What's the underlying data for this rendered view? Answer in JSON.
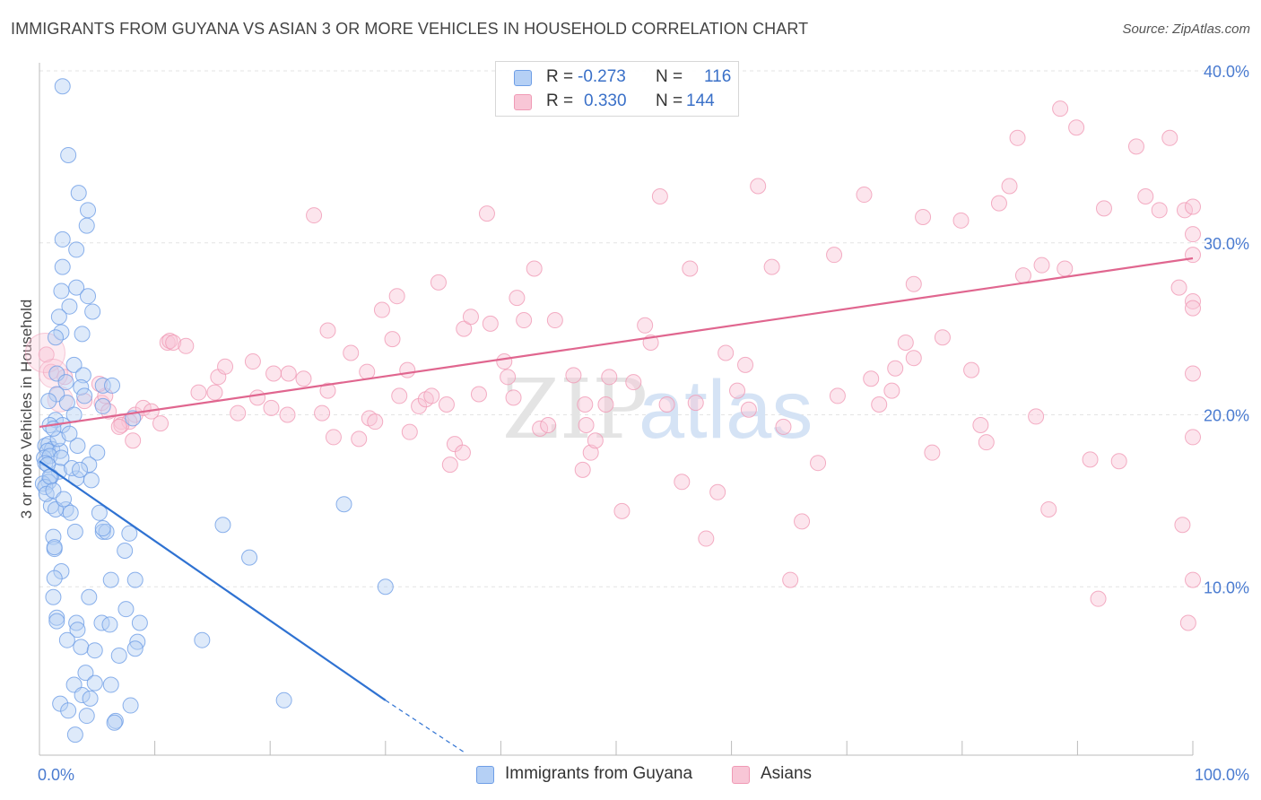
{
  "title": "IMMIGRANTS FROM GUYANA VS ASIAN 3 OR MORE VEHICLES IN HOUSEHOLD CORRELATION CHART",
  "source": "Source: ZipAtlas.com",
  "watermark": {
    "zip": "ZIP",
    "atlas": "atlas"
  },
  "stats": [
    {
      "r_label": "R =",
      "r_value": "-0.273",
      "n_label": "N =",
      "n_value": "116"
    },
    {
      "r_label": "R =",
      "r_value": "0.330",
      "n_label": "N =",
      "n_value": "144"
    }
  ],
  "chart_data": {
    "type": "scatter",
    "title": "IMMIGRANTS FROM GUYANA VS ASIAN 3 OR MORE VEHICLES IN HOUSEHOLD CORRELATION CHART",
    "xlabel": "",
    "ylabel": "3 or more Vehicles in Household",
    "xlim": [
      0,
      100
    ],
    "ylim": [
      0,
      40
    ],
    "x_tick_labels": [
      "0.0%",
      "100.0%"
    ],
    "y_ticks": [
      10,
      20,
      30,
      40
    ],
    "y_tick_labels": [
      "10.0%",
      "20.0%",
      "30.0%",
      "40.0%"
    ],
    "grid": true,
    "legend": "bottom-center",
    "series": [
      {
        "name": "Immigrants from Guyana",
        "color": "#6e9ee6",
        "trend": {
          "x": [
            0,
            30
          ],
          "y": [
            17.3,
            3.4
          ],
          "dashed_to": [
            37,
            0.3
          ]
        },
        "points": [
          [
            2,
            39.1
          ],
          [
            2.5,
            35.1
          ],
          [
            3.4,
            32.9
          ],
          [
            4.2,
            31.9
          ],
          [
            2,
            30.2
          ],
          [
            3.2,
            29.6
          ],
          [
            4.1,
            31
          ],
          [
            2,
            28.6
          ],
          [
            3.2,
            27.4
          ],
          [
            1.9,
            27.2
          ],
          [
            4.2,
            26.9
          ],
          [
            2.6,
            26.3
          ],
          [
            4.6,
            26
          ],
          [
            1.7,
            25.7
          ],
          [
            3.7,
            24.7
          ],
          [
            1.9,
            24.8
          ],
          [
            3,
            22.9
          ],
          [
            3.8,
            22.3
          ],
          [
            1.5,
            22.4
          ],
          [
            2.3,
            21.9
          ],
          [
            3.6,
            21.6
          ],
          [
            5.5,
            21.7
          ],
          [
            6.3,
            21.7
          ],
          [
            1.5,
            21.2
          ],
          [
            3.9,
            21.1
          ],
          [
            2.4,
            20.7
          ],
          [
            0.8,
            20.8
          ],
          [
            5.5,
            20.5
          ],
          [
            3,
            20
          ],
          [
            1.4,
            19.7
          ],
          [
            2,
            19.4
          ],
          [
            0.9,
            19.4
          ],
          [
            8.1,
            19.8
          ],
          [
            0.5,
            18.2
          ],
          [
            0.8,
            18.3
          ],
          [
            1.1,
            18
          ],
          [
            0.7,
            17.9
          ],
          [
            1.8,
            17.9
          ],
          [
            3.3,
            18.2
          ],
          [
            5,
            17.8
          ],
          [
            0.4,
            17.5
          ],
          [
            0.9,
            17.6
          ],
          [
            0.5,
            17.2
          ],
          [
            1.7,
            16.7
          ],
          [
            4.3,
            17.1
          ],
          [
            1,
            16.4
          ],
          [
            3.2,
            16.3
          ],
          [
            0.8,
            16.1
          ],
          [
            0.3,
            16
          ],
          [
            4.5,
            16.2
          ],
          [
            0.5,
            15.8
          ],
          [
            1,
            14.7
          ],
          [
            2.3,
            14.5
          ],
          [
            1.4,
            14.5
          ],
          [
            2.7,
            14.3
          ],
          [
            5.2,
            14.3
          ],
          [
            15.9,
            13.6
          ],
          [
            26.4,
            14.8
          ],
          [
            3.1,
            13.2
          ],
          [
            5.5,
            13.2
          ],
          [
            5.8,
            13.2
          ],
          [
            7.8,
            13.1
          ],
          [
            5.5,
            13.4
          ],
          [
            1.2,
            12.9
          ],
          [
            1.3,
            12.2
          ],
          [
            7.4,
            12.1
          ],
          [
            1.3,
            12.3
          ],
          [
            18.2,
            11.7
          ],
          [
            1.9,
            10.9
          ],
          [
            1.3,
            10.5
          ],
          [
            8.3,
            10.4
          ],
          [
            6.2,
            10.4
          ],
          [
            30,
            10
          ],
          [
            1.2,
            9.4
          ],
          [
            4.3,
            9.4
          ],
          [
            7.5,
            8.7
          ],
          [
            1.5,
            8.2
          ],
          [
            3.2,
            7.9
          ],
          [
            1.5,
            8
          ],
          [
            5.4,
            7.9
          ],
          [
            6.1,
            7.8
          ],
          [
            8.7,
            7.9
          ],
          [
            3.3,
            7.5
          ],
          [
            14.1,
            6.9
          ],
          [
            2.4,
            6.9
          ],
          [
            8.5,
            6.8
          ],
          [
            3.6,
            6.5
          ],
          [
            8.3,
            6.4
          ],
          [
            4.8,
            6.3
          ],
          [
            6.9,
            6
          ],
          [
            4,
            5
          ],
          [
            4.8,
            4.4
          ],
          [
            3,
            4.3
          ],
          [
            6.2,
            4.3
          ],
          [
            3.7,
            3.7
          ],
          [
            4.4,
            3.5
          ],
          [
            21.2,
            3.4
          ],
          [
            1.8,
            3.2
          ],
          [
            7.9,
            3.1
          ],
          [
            2.5,
            2.8
          ],
          [
            4.1,
            2.5
          ],
          [
            6.6,
            2.2
          ],
          [
            6.5,
            2.1
          ],
          [
            3.1,
            1.4
          ],
          [
            1.4,
            24.5
          ],
          [
            1.6,
            18.6
          ],
          [
            2.6,
            18.9
          ],
          [
            1.2,
            19.2
          ],
          [
            0.7,
            17.1
          ],
          [
            1.9,
            17.5
          ],
          [
            2.8,
            16.9
          ],
          [
            0.9,
            16.4
          ],
          [
            3.5,
            16.8
          ],
          [
            0.6,
            15.4
          ],
          [
            1.2,
            15.6
          ],
          [
            2.1,
            15.1
          ]
        ]
      },
      {
        "name": "Asians",
        "color": "#f09ab5",
        "trend": {
          "x": [
            0,
            100
          ],
          "y": [
            19.3,
            29.1
          ]
        },
        "points": [
          [
            0.6,
            23.5
          ],
          [
            1,
            22.5
          ],
          [
            2.2,
            22.2
          ],
          [
            3.9,
            20.8
          ],
          [
            5.4,
            20.7
          ],
          [
            5.7,
            21.1
          ],
          [
            6,
            20.2
          ],
          [
            7.1,
            19.6
          ],
          [
            8.3,
            20
          ],
          [
            9,
            20.4
          ],
          [
            9.7,
            20.2
          ],
          [
            7.8,
            19.6
          ],
          [
            7.1,
            19.4
          ],
          [
            10.5,
            19.5
          ],
          [
            6.9,
            19.3
          ],
          [
            8.1,
            18.5
          ],
          [
            11.1,
            24.2
          ],
          [
            11.3,
            24.3
          ],
          [
            11.6,
            24.2
          ],
          [
            12.7,
            24
          ],
          [
            13.8,
            21.3
          ],
          [
            15.2,
            21.3
          ],
          [
            15.5,
            22.2
          ],
          [
            16.1,
            22.8
          ],
          [
            17.2,
            20.1
          ],
          [
            18.5,
            23.1
          ],
          [
            18.9,
            21
          ],
          [
            20.1,
            20.4
          ],
          [
            20.3,
            22.4
          ],
          [
            21.5,
            20
          ],
          [
            21.6,
            22.4
          ],
          [
            22.9,
            22.1
          ],
          [
            23.8,
            31.6
          ],
          [
            24.5,
            20.1
          ],
          [
            25,
            24.9
          ],
          [
            25.5,
            18.7
          ],
          [
            25,
            21.4
          ],
          [
            27,
            23.6
          ],
          [
            27.7,
            18.6
          ],
          [
            28.4,
            22.5
          ],
          [
            28.6,
            19.8
          ],
          [
            29.1,
            19.6
          ],
          [
            29.7,
            26.1
          ],
          [
            30.6,
            24.4
          ],
          [
            31,
            26.9
          ],
          [
            31.2,
            21.1
          ],
          [
            31.9,
            22.6
          ],
          [
            32.1,
            19
          ],
          [
            32.9,
            20.5
          ],
          [
            33.5,
            20.9
          ],
          [
            34,
            21.1
          ],
          [
            34.6,
            27.7
          ],
          [
            35.3,
            20.6
          ],
          [
            35.6,
            17.1
          ],
          [
            36,
            18.3
          ],
          [
            36.7,
            17.8
          ],
          [
            36.8,
            25
          ],
          [
            37.4,
            25.7
          ],
          [
            38.1,
            21.2
          ],
          [
            38.8,
            31.7
          ],
          [
            39.1,
            25.3
          ],
          [
            40.3,
            23.1
          ],
          [
            40.6,
            22.2
          ],
          [
            41.1,
            21
          ],
          [
            41.4,
            26.8
          ],
          [
            42,
            25.5
          ],
          [
            42.9,
            28.5
          ],
          [
            43.4,
            19.2
          ],
          [
            44.1,
            19.4
          ],
          [
            44.7,
            25.5
          ],
          [
            46.3,
            22.3
          ],
          [
            47.1,
            16.8
          ],
          [
            47.3,
            20.6
          ],
          [
            47.4,
            19.4
          ],
          [
            47.8,
            17.8
          ],
          [
            48.2,
            18.5
          ],
          [
            49.1,
            20.6
          ],
          [
            49.4,
            22.2
          ],
          [
            50.5,
            14.4
          ],
          [
            51.5,
            21.9
          ],
          [
            52.5,
            25.2
          ],
          [
            53,
            24.2
          ],
          [
            53.8,
            32.7
          ],
          [
            54.4,
            20.6
          ],
          [
            55.7,
            16.1
          ],
          [
            56.4,
            28.5
          ],
          [
            56.9,
            20.7
          ],
          [
            57.8,
            12.8
          ],
          [
            58.8,
            15.5
          ],
          [
            59.5,
            23.6
          ],
          [
            60.5,
            21.4
          ],
          [
            61.5,
            20.3
          ],
          [
            61.2,
            22.9
          ],
          [
            62.3,
            33.3
          ],
          [
            63.5,
            28.6
          ],
          [
            64.5,
            19.3
          ],
          [
            65.1,
            10.4
          ],
          [
            66.1,
            13.8
          ],
          [
            67.5,
            17.2
          ],
          [
            68.9,
            29.3
          ],
          [
            69.2,
            21.1
          ],
          [
            71.5,
            32.8
          ],
          [
            72.1,
            22.1
          ],
          [
            72.8,
            20.6
          ],
          [
            73.9,
            21.4
          ],
          [
            74.2,
            22.7
          ],
          [
            75.1,
            24.2
          ],
          [
            75.8,
            27.6
          ],
          [
            75.8,
            23.3
          ],
          [
            76.6,
            31.5
          ],
          [
            77.4,
            17.8
          ],
          [
            78.3,
            24.5
          ],
          [
            79.9,
            31.3
          ],
          [
            80.8,
            22.6
          ],
          [
            81.6,
            19.4
          ],
          [
            82.1,
            18.4
          ],
          [
            83.2,
            32.3
          ],
          [
            84.1,
            33.3
          ],
          [
            84.8,
            36.1
          ],
          [
            85.3,
            28.1
          ],
          [
            86.4,
            19.9
          ],
          [
            86.9,
            28.7
          ],
          [
            87.5,
            14.5
          ],
          [
            88.5,
            37.8
          ],
          [
            88.9,
            28.5
          ],
          [
            89.9,
            36.7
          ],
          [
            91.1,
            17.4
          ],
          [
            91.8,
            9.3
          ],
          [
            92.3,
            32
          ],
          [
            93.6,
            17.3
          ],
          [
            95.1,
            35.6
          ],
          [
            95.9,
            32.7
          ],
          [
            97.1,
            31.9
          ],
          [
            98,
            36.1
          ],
          [
            98.8,
            27.4
          ],
          [
            99.3,
            31.9
          ],
          [
            100,
            32.1
          ],
          [
            100,
            22.4
          ],
          [
            100,
            26.6
          ],
          [
            100,
            30.5
          ],
          [
            100,
            29.3
          ],
          [
            100,
            26.2
          ],
          [
            100,
            18.7
          ],
          [
            99.1,
            13.6
          ],
          [
            100,
            10.4
          ],
          [
            99.6,
            7.9
          ],
          [
            5.2,
            21.8
          ]
        ]
      }
    ]
  },
  "legend": {
    "items": [
      {
        "label": "Immigrants from Guyana",
        "color": "#b5d0f5",
        "border": "#6e9ee6"
      },
      {
        "label": "Asians",
        "color": "#f8c6d6",
        "border": "#f09ab5"
      }
    ]
  },
  "colors": {
    "blue_line": "#2f72d2",
    "pink_line": "#e0668f",
    "tick_label": "#4a7bd0",
    "grid": "#e3e3e3"
  }
}
